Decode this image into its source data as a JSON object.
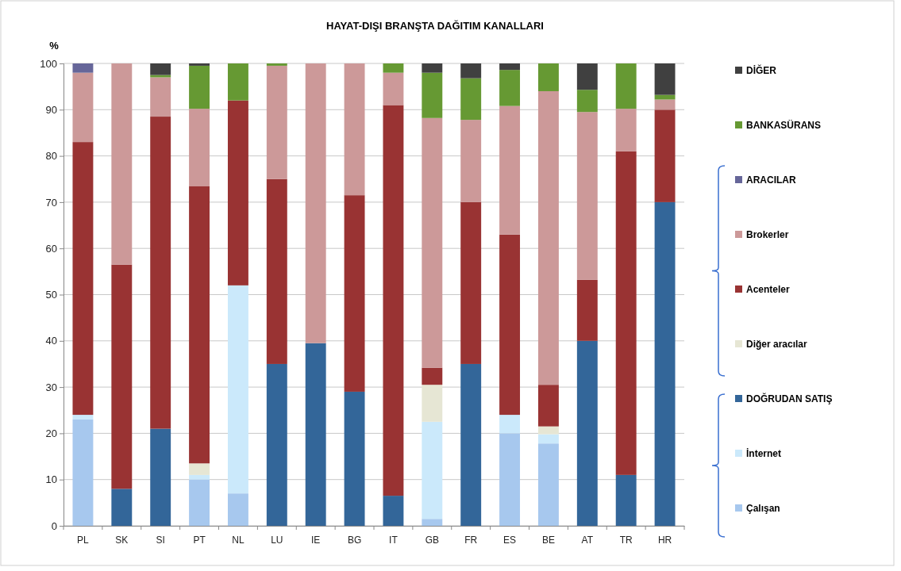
{
  "chart_data": {
    "type": "bar",
    "title": "HAYAT-DIŞI BRANŞTA DAĞITIM KANALLARI",
    "ylabel": "%",
    "stacked": true,
    "grid": "y",
    "legend": "right",
    "categories": [
      "PL",
      "SK",
      "SI",
      "PT",
      "NL",
      "LU",
      "IE",
      "BG",
      "IT",
      "GB",
      "FR",
      "ES",
      "BE",
      "AT",
      "TR",
      "HR"
    ],
    "ylim": [
      0,
      100
    ],
    "yticks": [
      0,
      10,
      20,
      30,
      40,
      50,
      60,
      70,
      80,
      90,
      100
    ],
    "series": [
      {
        "name": "Çalışan",
        "color": "#a7c8ee",
        "values": [
          23,
          null,
          null,
          10,
          7,
          null,
          null,
          null,
          null,
          1.5,
          null,
          20,
          17.8,
          null,
          null,
          null
        ]
      },
      {
        "name": "İnternet",
        "color": "#cbe9fb",
        "values": [
          1,
          null,
          null,
          1,
          45,
          null,
          null,
          null,
          null,
          21,
          null,
          4,
          2,
          null,
          null,
          null
        ]
      },
      {
        "name": "DOĞRUDAN SATIŞ",
        "color": "#336699",
        "values": [
          null,
          8,
          21,
          null,
          null,
          35,
          39.5,
          29,
          6.5,
          null,
          35,
          null,
          null,
          40,
          11,
          70
        ]
      },
      {
        "name": "Diğer aracılar",
        "color": "#e6e6d4",
        "values": [
          null,
          null,
          null,
          2.5,
          null,
          null,
          null,
          null,
          null,
          8,
          null,
          null,
          1.7,
          null,
          null,
          null
        ]
      },
      {
        "name": "Acenteler",
        "color": "#993333",
        "values": [
          59,
          48.5,
          67.5,
          60,
          40,
          40,
          null,
          42.5,
          84.5,
          3.7,
          35,
          39,
          9,
          13.2,
          70,
          20
        ]
      },
      {
        "name": "Brokerler",
        "color": "#cc9999",
        "values": [
          15,
          43.5,
          8.5,
          16.7,
          null,
          24.5,
          60.5,
          28.5,
          7,
          54,
          17.8,
          27.8,
          63.5,
          36.3,
          9.2,
          2.2
        ]
      },
      {
        "name": "ARACILAR",
        "color": "#666699",
        "values": [
          2,
          null,
          null,
          null,
          null,
          null,
          null,
          null,
          null,
          null,
          null,
          null,
          null,
          null,
          null,
          null
        ]
      },
      {
        "name": "BANKASÜRANS",
        "color": "#669933",
        "values": [
          null,
          null,
          0.5,
          9.3,
          8,
          0.5,
          null,
          null,
          2,
          9.8,
          9,
          7.8,
          6,
          4.8,
          9.8,
          1
        ]
      },
      {
        "name": "DİĞER",
        "color": "#404040",
        "values": [
          null,
          null,
          2.5,
          0.5,
          null,
          null,
          null,
          null,
          null,
          2,
          3.2,
          1.4,
          null,
          5.7,
          null,
          6.8
        ]
      }
    ]
  }
}
